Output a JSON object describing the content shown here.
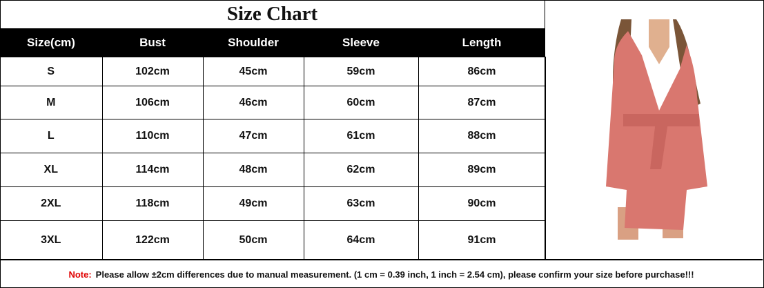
{
  "title": "Size Chart",
  "headers": [
    "Size(cm)",
    "Bust",
    "Shoulder",
    "Sleeve",
    "Length"
  ],
  "rows": [
    [
      "S",
      "102cm",
      "45cm",
      "59cm",
      "86cm"
    ],
    [
      "M",
      "106cm",
      "46cm",
      "60cm",
      "87cm"
    ],
    [
      "L",
      "110cm",
      "47cm",
      "61cm",
      "88cm"
    ],
    [
      "XL",
      "114cm",
      "48cm",
      "62cm",
      "89cm"
    ],
    [
      "2XL",
      "118cm",
      "49cm",
      "63cm",
      "90cm"
    ],
    [
      "3XL",
      "122cm",
      "50cm",
      "64cm",
      "91cm"
    ]
  ],
  "note": {
    "label": "Note:",
    "text": "Please allow ±2cm differences due to manual measurement. (1 cm = 0.39 inch, 1 inch = 2.54 cm), please confirm your size before purchase!!!",
    "label_color": "#e00000"
  },
  "product_image": {
    "subject": "pink-fleece-hooded-robe",
    "color": "#d9776f"
  }
}
